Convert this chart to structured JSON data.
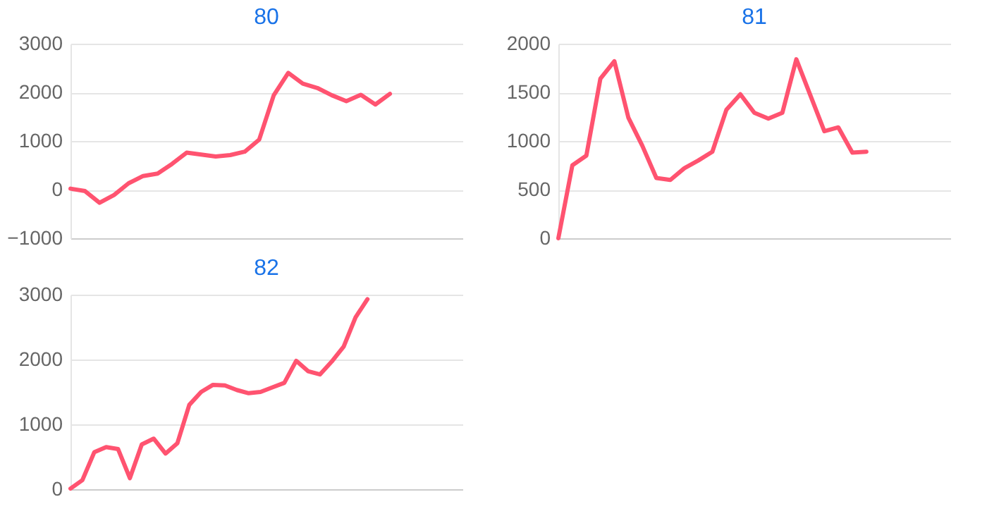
{
  "chart_data": [
    {
      "type": "line",
      "title": "80",
      "categories": [
        null,
        null,
        null,
        null,
        null,
        null,
        null,
        null,
        null,
        null,
        null,
        null,
        null,
        null,
        null,
        null,
        null,
        null,
        null,
        null,
        null,
        null,
        null,
        null,
        null,
        null,
        null,
        null
      ],
      "series": [
        {
          "color": "#ff5370",
          "values": [
            20,
            -30,
            -270,
            -110,
            130,
            280,
            330,
            530,
            760,
            720,
            680,
            710,
            780,
            1030,
            1940,
            2400,
            2180,
            2090,
            1940,
            1820,
            1950,
            1750,
            1970,
            null,
            null,
            null,
            null,
            null
          ]
        }
      ],
      "ylim": [
        -1000,
        3000
      ],
      "yticks": [
        -1000,
        0,
        1000,
        2000,
        3000
      ],
      "grid": "y",
      "tick_labels": "y",
      "marker": "none",
      "line_style": "solid"
    },
    {
      "type": "line",
      "title": "81",
      "categories": [
        null,
        null,
        null,
        null,
        null,
        null,
        null,
        null,
        null,
        null,
        null,
        null,
        null,
        null,
        null,
        null,
        null,
        null,
        null,
        null,
        null,
        null,
        null,
        null,
        null,
        null,
        null,
        null,
        null
      ],
      "series": [
        {
          "color": "#ff5370",
          "values": [
            0,
            750,
            850,
            1640,
            1820,
            1240,
            950,
            620,
            600,
            720,
            800,
            890,
            1320,
            1480,
            1290,
            1230,
            1290,
            1840,
            1470,
            1100,
            1140,
            880,
            890,
            null,
            null,
            null,
            null,
            null,
            null
          ]
        }
      ],
      "ylim": [
        0,
        2000
      ],
      "yticks": [
        0,
        500,
        1000,
        1500,
        2000
      ],
      "grid": "y",
      "tick_labels": "y",
      "marker": "none",
      "line_style": "solid"
    },
    {
      "type": "line",
      "title": "82",
      "categories": [
        null,
        null,
        null,
        null,
        null,
        null,
        null,
        null,
        null,
        null,
        null,
        null,
        null,
        null,
        null,
        null,
        null,
        null,
        null,
        null,
        null,
        null,
        null,
        null,
        null,
        null,
        null,
        null,
        null,
        null,
        null,
        null,
        null,
        null
      ],
      "series": [
        {
          "color": "#ff5370",
          "values": [
            10,
            140,
            570,
            650,
            620,
            170,
            690,
            780,
            550,
            710,
            1300,
            1500,
            1610,
            1600,
            1530,
            1480,
            1500,
            1570,
            1640,
            1980,
            1820,
            1770,
            1970,
            2200,
            2650,
            2930,
            null,
            null,
            null,
            null,
            null,
            null,
            null,
            null
          ]
        }
      ],
      "ylim": [
        0,
        3000
      ],
      "yticks": [
        0,
        1000,
        2000,
        3000
      ],
      "grid": "y",
      "tick_labels": "y",
      "marker": "none",
      "line_style": "solid"
    }
  ]
}
